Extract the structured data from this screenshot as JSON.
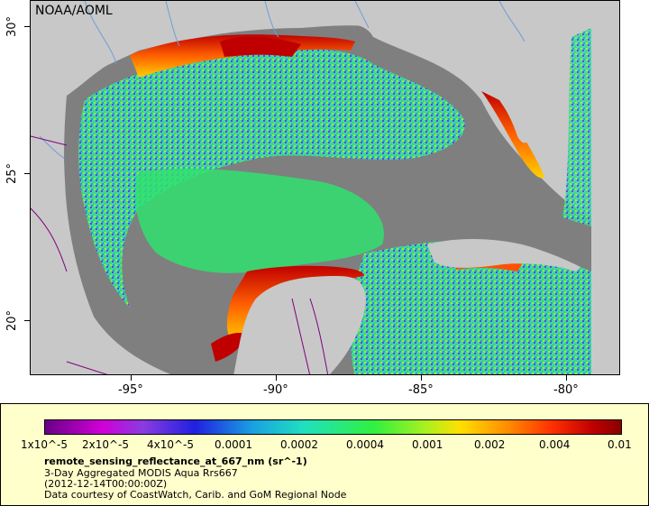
{
  "agency_label": "NOAA/AOML",
  "lat_labels": [
    "30°",
    "25°",
    "20°"
  ],
  "lon_labels": [
    "-95°",
    "-90°",
    "-85°",
    "-80°"
  ],
  "colorbar_ticks": [
    "1x10^-5",
    "2x10^-5",
    "4x10^-5",
    "0.0001",
    "0.0002",
    "0.0004",
    "0.001",
    "0.002",
    "0.004",
    "0.01"
  ],
  "variable_name": "remote_sensing_reflectance_at_667_nm (sr^-1)",
  "dataset_title": "3-Day Aggregated MODIS Aqua Rrs667",
  "time_label": "(2012-12-14T00:00:00Z)",
  "credit": "Data courtesy of CoastWatch, Carib. and GoM Regional Node",
  "colors": {
    "land": "#c8c8c8",
    "no_data": "#7f7f7f",
    "legend_bg": "#ffffcc",
    "rivers": "#6e9ed6",
    "borders": "#800080"
  }
}
